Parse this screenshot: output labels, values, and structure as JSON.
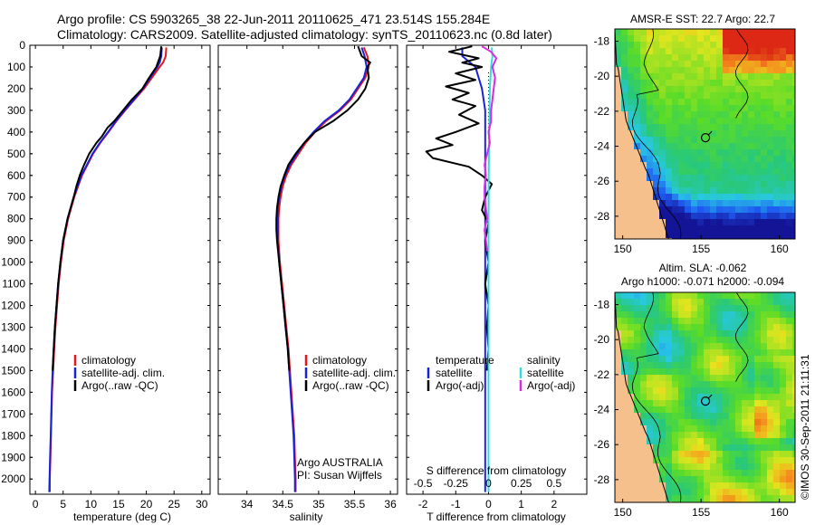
{
  "header": {
    "title_line1": "Argo profile: CS 5903265_38 22-Jun-2011 20110625_471 23.514S 155.284E",
    "title_line2": "Climatology: CARS2009. Satellite-adjusted climatology: synTS_20110623.nc (0.8d later)"
  },
  "colors": {
    "climatology": "#e8161a",
    "satellite": "#1a22d6",
    "argo": "#000000",
    "sal_satellite": "#35d9de",
    "sal_argo": "#d92be0",
    "land": "#f5c08c"
  },
  "depth_axis": {
    "ticks": [
      0,
      100,
      200,
      300,
      400,
      500,
      600,
      700,
      800,
      900,
      1000,
      1100,
      1200,
      1300,
      1400,
      1500,
      1600,
      1700,
      1800,
      1900,
      2000
    ],
    "range": [
      0,
      2070
    ]
  },
  "chart_data": [
    {
      "type": "line",
      "panel": "temperature",
      "xlabel": "temperature (deg C)",
      "ylabel": "",
      "xlim": [
        -1,
        31.5
      ],
      "ylim": [
        2070,
        0
      ],
      "xticks": [
        0,
        5,
        10,
        15,
        20,
        25,
        30
      ],
      "legend": [
        "climatology",
        "satellite-adj. clim.",
        "Argo(..raw -QC)"
      ],
      "series": [
        {
          "name": "climatology",
          "color": "#e8161a",
          "depth": [
            10,
            50,
            80,
            100,
            150,
            200,
            250,
            300,
            350,
            400,
            450,
            500,
            550,
            600,
            650,
            700,
            800,
            900,
            1000,
            1100,
            1200,
            1300,
            1400,
            1500,
            1600,
            1700,
            1800,
            1900,
            2000,
            2060
          ],
          "values": [
            23.6,
            23.5,
            23.0,
            22.4,
            21.0,
            19.6,
            17.9,
            16.2,
            14.6,
            13.2,
            11.7,
            10.4,
            9.4,
            8.4,
            7.7,
            7.0,
            5.9,
            5.1,
            4.6,
            4.2,
            3.9,
            3.6,
            3.4,
            3.2,
            3.0,
            2.9,
            2.8,
            2.7,
            2.6,
            2.6
          ]
        },
        {
          "name": "satellite-adj. clim.",
          "color": "#1a22d6",
          "depth": [
            10,
            50,
            80,
            100,
            150,
            200,
            250,
            300,
            350,
            400,
            450,
            500,
            550,
            600,
            650,
            700,
            800,
            900,
            1000,
            1100,
            1200,
            1300,
            1400,
            1500,
            1600,
            1700,
            1800,
            1900,
            2000,
            2060
          ],
          "values": [
            22.8,
            22.7,
            22.4,
            22.0,
            20.7,
            19.4,
            17.8,
            16.1,
            14.5,
            13.1,
            11.6,
            10.3,
            9.3,
            8.3,
            7.6,
            6.9,
            5.8,
            5.0,
            4.5,
            4.1,
            3.8,
            3.5,
            3.3,
            3.1,
            2.95,
            2.85,
            2.75,
            2.65,
            2.55,
            2.5
          ]
        },
        {
          "name": "Argo(..raw -QC)",
          "color": "#000000",
          "depth": [
            5,
            50,
            100,
            150,
            200,
            250,
            300,
            350,
            380,
            400,
            420,
            450,
            500,
            550,
            600,
            650,
            700,
            800,
            900,
            1000,
            1100,
            1200,
            1300,
            1400,
            1500
          ],
          "values": [
            22.7,
            22.5,
            21.8,
            20.5,
            19.3,
            17.4,
            15.8,
            14.2,
            13.0,
            12.5,
            12.0,
            11.0,
            9.7,
            8.8,
            8.0,
            7.4,
            6.9,
            5.8,
            5.0,
            4.5,
            4.1,
            3.8,
            3.5,
            3.3,
            3.1
          ]
        }
      ]
    },
    {
      "type": "line",
      "panel": "salinity",
      "xlabel": "salinity",
      "ylabel": "",
      "xlim": [
        33.6,
        36.1
      ],
      "ylim": [
        2070,
        0
      ],
      "xticks": [
        34,
        34.5,
        35,
        35.5,
        36
      ],
      "legend": [
        "climatology",
        "satellite-adj. clim.",
        "Argo(..raw -QC)"
      ],
      "series": [
        {
          "name": "climatology",
          "color": "#e8161a",
          "depth": [
            10,
            50,
            100,
            150,
            200,
            250,
            300,
            350,
            400,
            450,
            500,
            550,
            600,
            650,
            700,
            750,
            800,
            850,
            900,
            950,
            1000,
            1100,
            1200,
            1300,
            1400,
            1500,
            1600,
            1700,
            1800,
            1900,
            2000,
            2060
          ],
          "values": [
            35.63,
            35.68,
            35.7,
            35.65,
            35.55,
            35.45,
            35.3,
            35.1,
            34.95,
            34.82,
            34.72,
            34.62,
            34.55,
            34.5,
            34.47,
            34.45,
            34.44,
            34.44,
            34.44,
            34.45,
            34.46,
            34.49,
            34.52,
            34.55,
            34.58,
            34.6,
            34.62,
            34.64,
            34.66,
            34.67,
            34.68,
            34.68
          ]
        },
        {
          "name": "satellite-adj. clim.",
          "color": "#1a22d6",
          "depth": [
            10,
            50,
            100,
            150,
            200,
            250,
            300,
            350,
            400,
            450,
            500,
            550,
            600,
            650,
            700,
            750,
            800,
            850,
            900,
            950,
            1000,
            1100,
            1200,
            1300,
            1400,
            1500,
            1600,
            1700,
            1800,
            1900,
            2000,
            2060
          ],
          "values": [
            35.6,
            35.64,
            35.67,
            35.63,
            35.53,
            35.43,
            35.28,
            35.08,
            34.93,
            34.8,
            34.7,
            34.6,
            34.53,
            34.48,
            34.45,
            34.43,
            34.43,
            34.43,
            34.43,
            34.44,
            34.45,
            34.48,
            34.51,
            34.54,
            34.57,
            34.59,
            34.61,
            34.63,
            34.65,
            34.66,
            34.67,
            34.67
          ]
        },
        {
          "name": "Argo(..raw -QC)",
          "color": "#000000",
          "depth": [
            5,
            50,
            80,
            100,
            150,
            200,
            250,
            300,
            350,
            400,
            450,
            500,
            550,
            600,
            650,
            700,
            750,
            800,
            850,
            900,
            1000,
            1100,
            1200,
            1300,
            1400,
            1500
          ],
          "values": [
            35.55,
            35.6,
            35.72,
            35.68,
            35.7,
            35.65,
            35.55,
            35.4,
            35.2,
            34.95,
            34.8,
            34.68,
            34.58,
            34.52,
            34.47,
            34.44,
            34.42,
            34.41,
            34.41,
            34.42,
            34.45,
            34.48,
            34.51,
            34.54,
            34.57,
            34.59
          ]
        }
      ]
    },
    {
      "type": "line",
      "panel": "difference",
      "xlabel": "T difference from climatology",
      "x2label": "S difference from climatology",
      "ylabel": "",
      "xlim": [
        -2.5,
        3
      ],
      "ylim": [
        2070,
        0
      ],
      "xticks": [
        -2,
        -1,
        0,
        1,
        2
      ],
      "x2ticks": [
        "-0.5",
        "-0.25",
        "0",
        "0.25",
        "0.5"
      ],
      "legend": [
        "temperature",
        "satellite",
        "Argo(-adj)",
        "salinity",
        "satellite",
        "Argo(-adj)"
      ],
      "series": [
        {
          "name": "temperature satellite",
          "color": "#1a22d6",
          "depth": [
            10,
            50,
            100,
            150,
            200,
            300,
            400,
            500,
            600,
            700,
            800,
            900,
            1000,
            1200,
            1400,
            1600,
            1800,
            2000,
            2060
          ],
          "values": [
            -0.8,
            -0.8,
            -0.4,
            -0.3,
            -0.2,
            -0.1,
            -0.1,
            -0.1,
            -0.1,
            -0.1,
            -0.1,
            -0.1,
            -0.1,
            -0.1,
            -0.1,
            -0.1,
            -0.1,
            -0.1,
            -0.1
          ]
        },
        {
          "name": "temperature Argo(-adj)",
          "color": "#000000",
          "depth": [
            5,
            30,
            60,
            80,
            100,
            130,
            160,
            190,
            220,
            250,
            280,
            320,
            360,
            400,
            430,
            460,
            490,
            520,
            560,
            600,
            640,
            700,
            760,
            820,
            900,
            1000,
            1100,
            1200,
            1300,
            1400,
            1500
          ],
          "values": [
            -0.5,
            -1.2,
            -0.3,
            -0.8,
            -0.2,
            -1.0,
            -0.4,
            -1.3,
            -0.6,
            -1.1,
            -0.4,
            -0.9,
            -0.3,
            -1.0,
            -1.6,
            -1.1,
            -1.9,
            -1.7,
            -0.6,
            -0.2,
            0.1,
            -0.1,
            -0.2,
            0.0,
            -0.1,
            0.0,
            -0.1,
            0.0,
            -0.05,
            0.0,
            -0.05
          ]
        },
        {
          "name": "salinity satellite",
          "color": "#35d9de",
          "depth": [
            10,
            50,
            100,
            150,
            200,
            300,
            400,
            500,
            600,
            700,
            800,
            900,
            1000,
            1200,
            1400,
            1600,
            1800,
            2000,
            2060
          ],
          "values": [
            0.025,
            0.03,
            0.02,
            0.015,
            0.01,
            0.008,
            0.005,
            0.003,
            0.002,
            0.001,
            0.0,
            0.0,
            0.0,
            0.0,
            0.0,
            0.0,
            0.0,
            0.0,
            0.0
          ]
        },
        {
          "name": "salinity Argo(-adj)",
          "color": "#d92be0",
          "depth": [
            5,
            30,
            60,
            100,
            150,
            200,
            250,
            300,
            350,
            400,
            450,
            500,
            550,
            600,
            650,
            700,
            750,
            800,
            850,
            900,
            950
          ],
          "values": [
            -0.05,
            0.02,
            0.06,
            0.03,
            0.05,
            0.04,
            0.03,
            0.02,
            0.02,
            0.0,
            0.01,
            -0.01,
            -0.03,
            -0.02,
            -0.03,
            -0.03,
            -0.02,
            -0.01,
            -0.03,
            -0.02,
            -0.01
          ]
        }
      ]
    },
    {
      "type": "heatmap",
      "panel": "sst_map",
      "title": "AMSR-E SST: 22.7 Argo: 22.7",
      "xlim": [
        149.5,
        161
      ],
      "ylim": [
        -29.3,
        -17.3
      ],
      "xticks": [
        150,
        155,
        160
      ],
      "yticks": [
        -18,
        -20,
        -22,
        -24,
        -26,
        -28
      ],
      "marker": {
        "lon": 155.284,
        "lat": -23.514
      }
    },
    {
      "type": "heatmap",
      "panel": "sla_map",
      "title": "Altim. SLA: -0.062",
      "subtitle": "Argo h1000: -0.071 h2000: -0.094",
      "xlim": [
        149.5,
        161
      ],
      "ylim": [
        -29.3,
        -17.3
      ],
      "xticks": [
        150,
        155,
        160
      ],
      "yticks": [
        -18,
        -20,
        -22,
        -24,
        -26,
        -28
      ],
      "marker": {
        "lon": 155.284,
        "lat": -23.514
      }
    }
  ],
  "annotations": {
    "argo_label": "Argo AUSTRALIA",
    "pi_label": "PI: Susan Wijffels",
    "imos_stamp": "©IMOS 30-Sep-2011 21:11:31"
  }
}
